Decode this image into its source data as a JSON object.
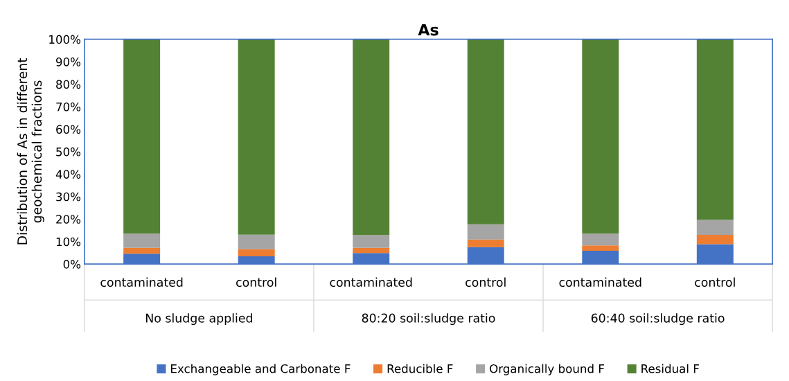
{
  "chart_data": {
    "type": "bar",
    "stacked": true,
    "title": "As",
    "ylabel": "Distribution of As in different\ngeochemical fractions",
    "categories": [
      "contaminated",
      "control",
      "contaminated",
      "control",
      "contaminated",
      "control"
    ],
    "annotations": [
      "No sludge applied",
      "80:20 soil:sludge ratio",
      "60:40 soil:sludge ratio"
    ],
    "series": [
      {
        "name": "Exchangeable and Carbonate F",
        "color": "#4472c4",
        "values": [
          4.6,
          3.4,
          4.9,
          7.5,
          5.9,
          8.8
        ]
      },
      {
        "name": "Reducible F",
        "color": "#ed7d31",
        "values": [
          2.6,
          3.2,
          2.3,
          3.4,
          2.4,
          4.2
        ]
      },
      {
        "name": "Organically bound F",
        "color": "#a5a5a5",
        "values": [
          6.3,
          6.5,
          5.7,
          6.8,
          5.2,
          6.7
        ]
      },
      {
        "name": "Residual F",
        "color": "#548235",
        "values": [
          86.5,
          86.9,
          87.1,
          82.3,
          86.5,
          80.3
        ]
      }
    ],
    "ylim": [
      0,
      100
    ],
    "yticks": [
      {
        "value": 0,
        "label": "0%"
      },
      {
        "value": 10,
        "label": "10%"
      },
      {
        "value": 20,
        "label": "20%"
      },
      {
        "value": 30,
        "label": "30%"
      },
      {
        "value": 40,
        "label": "40%"
      },
      {
        "value": 50,
        "label": "50%"
      },
      {
        "value": 60,
        "label": "60%"
      },
      {
        "value": 70,
        "label": "70%"
      },
      {
        "value": 80,
        "label": "80%"
      },
      {
        "value": 90,
        "label": "90%"
      },
      {
        "value": 100,
        "label": "100%"
      }
    ],
    "grid": false,
    "legend": "bottom"
  }
}
